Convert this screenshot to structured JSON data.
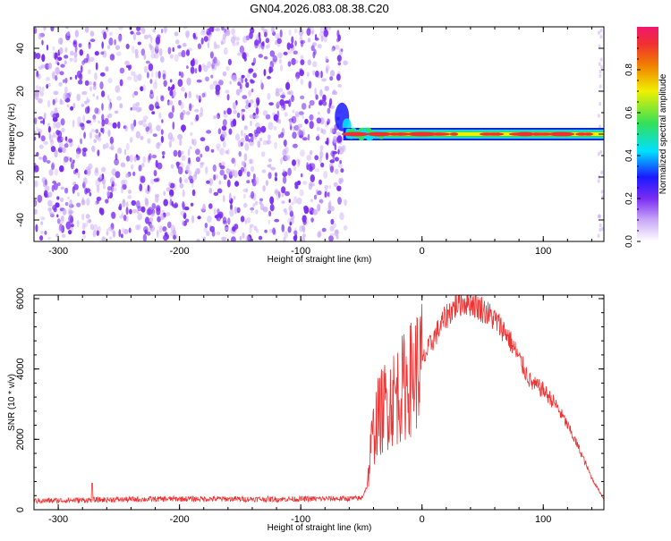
{
  "title": "GN04.2026.083.08.38.C20",
  "colors": {
    "snr_line": "#ee3333",
    "noise_dot": "#7a2cf2",
    "noise_faint": "#c9a8f7",
    "ridge_outer": "#1a1aff",
    "ridge_mid": "#00e0ff",
    "ridge_green": "#33e05a",
    "ridge_yellow": "#f0f000",
    "ridge_red": "#f03030"
  },
  "chart_data": [
    {
      "type": "heatmap",
      "name": "spectrogram",
      "xlabel": "Height of straight line (km)",
      "ylabel": "Frequency (Hz)",
      "xlim": [
        -320,
        150
      ],
      "ylim": [
        -50,
        50
      ],
      "xticks": [
        -300,
        -200,
        -100,
        0,
        100
      ],
      "yticks": [
        -40,
        -20,
        0,
        20,
        40
      ],
      "noise_region_x": [
        -320,
        -63
      ],
      "ridge": {
        "x_start": -65,
        "x_end": 150,
        "center_frequency_hz": 0,
        "peaks_x": [
          -55,
          -35,
          0,
          85,
          115
        ]
      },
      "colorbar": {
        "label": "Normalized spectral amplitude",
        "range": [
          0.0,
          1.0
        ],
        "ticks": [
          "0.0",
          "0.2",
          "0.4",
          "0.6",
          "0.8"
        ],
        "tick_values": [
          0.0,
          0.2,
          0.4,
          0.6,
          0.8
        ],
        "colormap": [
          "#ffffff",
          "#7a2cf2",
          "#1a1aff",
          "#00e0ff",
          "#33e05a",
          "#f0f000",
          "#f08000",
          "#f03030",
          "#f0186e"
        ]
      }
    },
    {
      "type": "line",
      "name": "snr",
      "xlabel": "Height of straight line (km)",
      "ylabel": "SNR (10 * v/v)",
      "xlim": [
        -320,
        150
      ],
      "ylim": [
        0,
        6100
      ],
      "xticks": [
        -300,
        -200,
        -100,
        0,
        100
      ],
      "yticks": [
        0,
        2000,
        4000,
        6000
      ],
      "envelope": {
        "x": [
          -320,
          -270,
          -200,
          -120,
          -50,
          -45,
          -42,
          -38,
          -30,
          -20,
          -10,
          0,
          10,
          20,
          30,
          40,
          50,
          60,
          70,
          80,
          90,
          100,
          110,
          120,
          130,
          140,
          150
        ],
        "y": [
          250,
          280,
          310,
          300,
          320,
          700,
          1800,
          2500,
          3000,
          3300,
          3700,
          4200,
          4900,
          5500,
          5900,
          5900,
          5700,
          5400,
          5000,
          4300,
          3600,
          3400,
          3000,
          2400,
          1700,
          900,
          300
        ]
      }
    }
  ]
}
